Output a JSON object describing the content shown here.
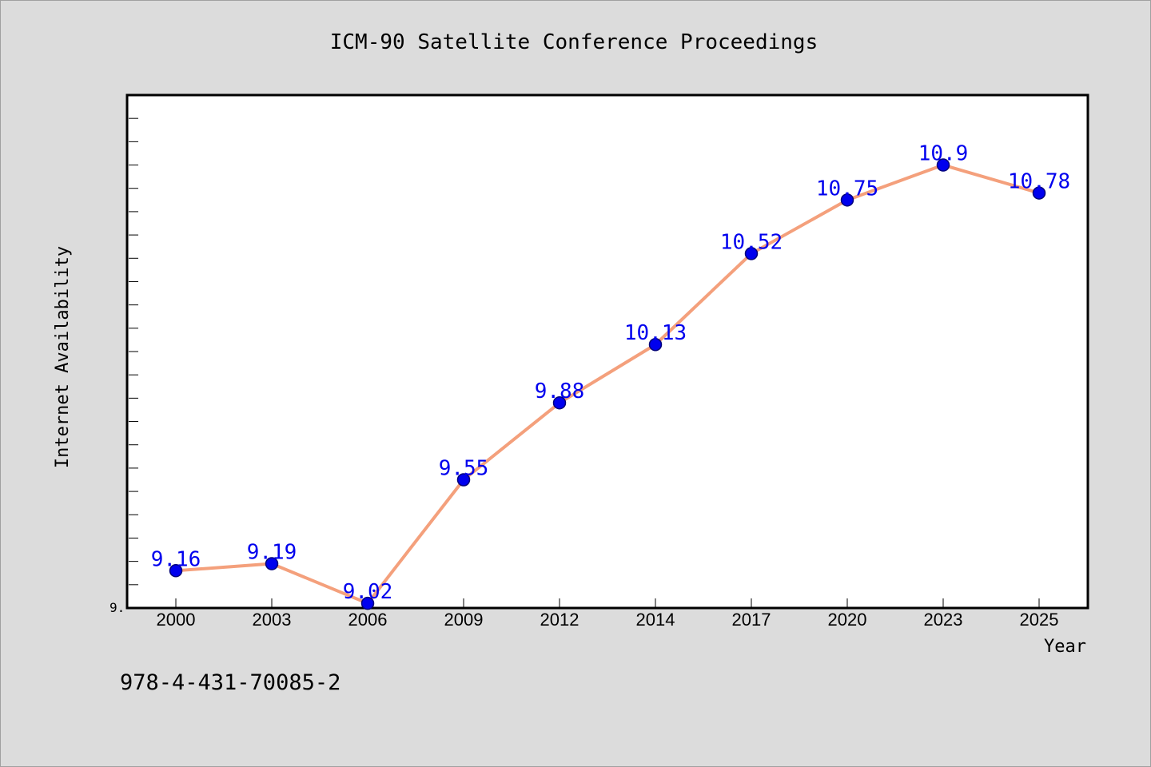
{
  "chart_data": {
    "type": "line",
    "title": "ICM-90 Satellite Conference Proceedings",
    "xlabel": "Year",
    "ylabel": "Internet Availability",
    "categories": [
      "2000",
      "2003",
      "2006",
      "2009",
      "2012",
      "2014",
      "2017",
      "2020",
      "2023",
      "2025"
    ],
    "series": [
      {
        "values": [
          9.16,
          9.19,
          9.02,
          9.55,
          9.88,
          10.13,
          10.52,
          10.75,
          10.9,
          10.78
        ],
        "point_labels": [
          "9.16",
          "9.19",
          "9.02",
          "9.55",
          "9.88",
          "10.13",
          "10.52",
          "10.75",
          "10.9",
          "10.78"
        ]
      }
    ],
    "ylim": [
      9.0,
      11.2
    ],
    "y_tick_label": "9.",
    "grid": false,
    "legend": "none",
    "colors": {
      "line": "#f4a07c",
      "marker": "#0000ee",
      "marker_edge": "#00007a",
      "point_label": "#0000ee",
      "plot_background": "#ffffff",
      "page_background": "#dcdcdc"
    }
  },
  "footer": {
    "isbn": "978-4-431-70085-2"
  }
}
